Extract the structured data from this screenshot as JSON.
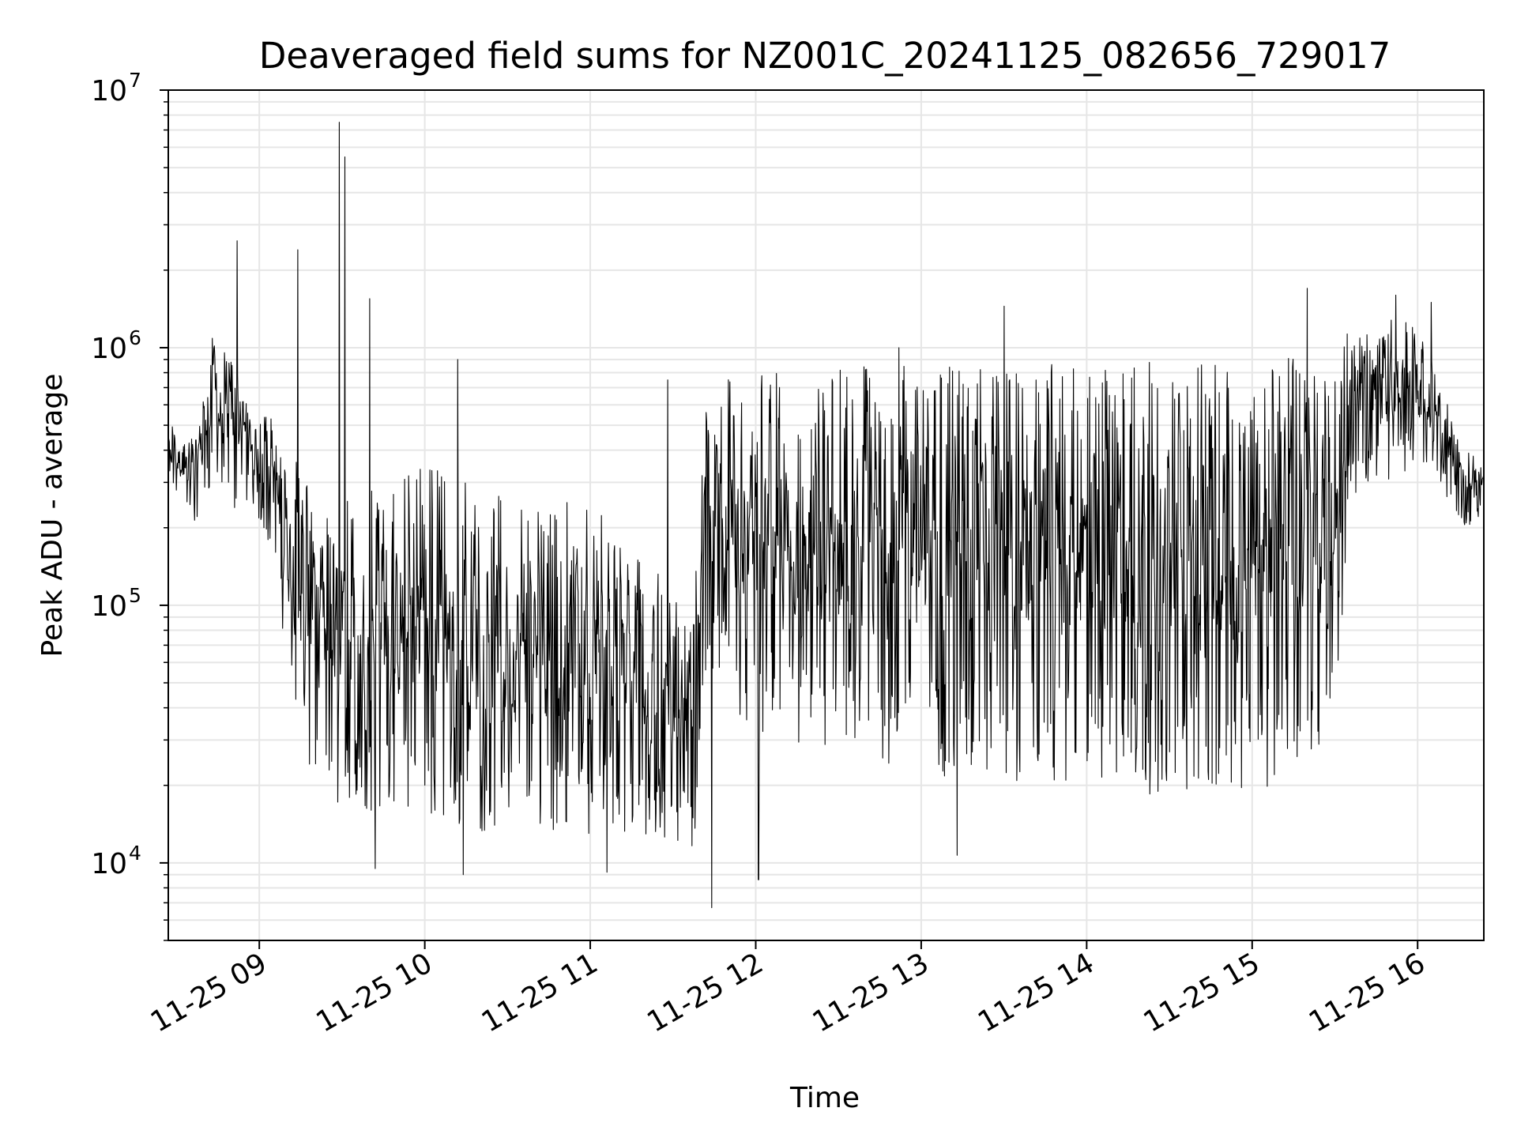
{
  "chart_data": {
    "type": "line",
    "title": "Deaveraged field sums for NZ001C_20241125_082656_729017",
    "xlabel": "Time",
    "ylabel": "Peak ADU - average",
    "yscale": "log",
    "ylim": [
      5000,
      10000000
    ],
    "xlim": [
      "2024-11-25 08:27",
      "2024-11-25 16:24"
    ],
    "grid": true,
    "line_color": "#000000",
    "grid_color": "#e6e6e6",
    "x_ticks": [
      {
        "value": "2024-11-25 09:00",
        "label": "11-25 09"
      },
      {
        "value": "2024-11-25 10:00",
        "label": "11-25 10"
      },
      {
        "value": "2024-11-25 11:00",
        "label": "11-25 11"
      },
      {
        "value": "2024-11-25 12:00",
        "label": "11-25 12"
      },
      {
        "value": "2024-11-25 13:00",
        "label": "11-25 13"
      },
      {
        "value": "2024-11-25 14:00",
        "label": "11-25 14"
      },
      {
        "value": "2024-11-25 15:00",
        "label": "11-25 15"
      },
      {
        "value": "2024-11-25 16:00",
        "label": "11-25 16"
      }
    ],
    "y_ticks": [
      {
        "value": 10000,
        "base": "10",
        "exp": "4"
      },
      {
        "value": 100000,
        "base": "10",
        "exp": "5"
      },
      {
        "value": 1000000,
        "base": "10",
        "exp": "6"
      },
      {
        "value": 10000000,
        "base": "10",
        "exp": "7"
      }
    ],
    "envelope": [
      {
        "t": "2024-11-25 08:27",
        "low": 300000,
        "high": 520000
      },
      {
        "t": "2024-11-25 08:37",
        "low": 200000,
        "high": 450000
      },
      {
        "t": "2024-11-25 08:43",
        "low": 300000,
        "high": 1100000
      },
      {
        "t": "2024-11-25 08:50",
        "low": 230000,
        "high": 900000
      },
      {
        "t": "2024-11-25 08:57",
        "low": 250000,
        "high": 700000
      },
      {
        "t": "2024-11-25 09:05",
        "low": 160000,
        "high": 520000
      },
      {
        "t": "2024-11-25 09:10",
        "low": 60000,
        "high": 420000
      },
      {
        "t": "2024-11-25 09:18",
        "low": 22000,
        "high": 300000
      },
      {
        "t": "2024-11-25 09:25",
        "low": 16000,
        "high": 250000
      },
      {
        "t": "2024-11-25 09:35",
        "low": 15000,
        "high": 300000
      },
      {
        "t": "2024-11-25 09:50",
        "low": 17000,
        "high": 300000
      },
      {
        "t": "2024-11-25 10:05",
        "low": 14000,
        "high": 400000
      },
      {
        "t": "2024-11-25 10:20",
        "low": 13000,
        "high": 280000
      },
      {
        "t": "2024-11-25 10:35",
        "low": 15000,
        "high": 250000
      },
      {
        "t": "2024-11-25 10:50",
        "low": 13000,
        "high": 260000
      },
      {
        "t": "2024-11-25 11:05",
        "low": 13000,
        "high": 230000
      },
      {
        "t": "2024-11-25 11:20",
        "low": 12000,
        "high": 150000
      },
      {
        "t": "2024-11-25 11:38",
        "low": 11000,
        "high": 120000
      },
      {
        "t": "2024-11-25 11:42",
        "low": 60000,
        "high": 750000
      },
      {
        "t": "2024-11-25 12:00",
        "low": 30000,
        "high": 800000
      },
      {
        "t": "2024-11-25 12:30",
        "low": 25000,
        "high": 850000
      },
      {
        "t": "2024-11-25 13:00",
        "low": 22000,
        "high": 850000
      },
      {
        "t": "2024-11-25 13:30",
        "low": 20000,
        "high": 850000
      },
      {
        "t": "2024-11-25 14:00",
        "low": 20000,
        "high": 880000
      },
      {
        "t": "2024-11-25 14:30",
        "low": 18000,
        "high": 880000
      },
      {
        "t": "2024-11-25 15:00",
        "low": 18000,
        "high": 900000
      },
      {
        "t": "2024-11-25 15:30",
        "low": 30000,
        "high": 950000
      },
      {
        "t": "2024-11-25 15:35",
        "low": 250000,
        "high": 1300000
      },
      {
        "t": "2024-11-25 16:00",
        "low": 350000,
        "high": 1300000
      },
      {
        "t": "2024-11-25 16:08",
        "low": 300000,
        "high": 800000
      },
      {
        "t": "2024-11-25 16:15",
        "low": 200000,
        "high": 450000
      },
      {
        "t": "2024-11-25 16:24",
        "low": 200000,
        "high": 350000
      }
    ],
    "spikes": [
      {
        "t": "2024-11-25 08:52",
        "value": 2600000
      },
      {
        "t": "2024-11-25 09:14",
        "value": 2400000
      },
      {
        "t": "2024-11-25 09:29",
        "value": 7500000
      },
      {
        "t": "2024-11-25 09:31",
        "value": 5500000
      },
      {
        "t": "2024-11-25 09:40",
        "value": 1550000
      },
      {
        "t": "2024-11-25 10:12",
        "value": 900000
      },
      {
        "t": "2024-11-25 11:28",
        "value": 750000
      },
      {
        "t": "2024-11-25 12:52",
        "value": 1000000
      },
      {
        "t": "2024-11-25 13:30",
        "value": 1450000
      },
      {
        "t": "2024-11-25 15:20",
        "value": 1700000
      },
      {
        "t": "2024-11-25 15:52",
        "value": 1600000
      },
      {
        "t": "2024-11-25 16:05",
        "value": 1500000
      }
    ],
    "dips": [
      {
        "t": "2024-11-25 09:42",
        "value": 9500
      },
      {
        "t": "2024-11-25 10:14",
        "value": 9000
      },
      {
        "t": "2024-11-25 11:06",
        "value": 9200
      },
      {
        "t": "2024-11-25 11:44",
        "value": 6700
      },
      {
        "t": "2024-11-25 12:01",
        "value": 8600
      },
      {
        "t": "2024-11-25 13:13",
        "value": 10700
      }
    ]
  }
}
